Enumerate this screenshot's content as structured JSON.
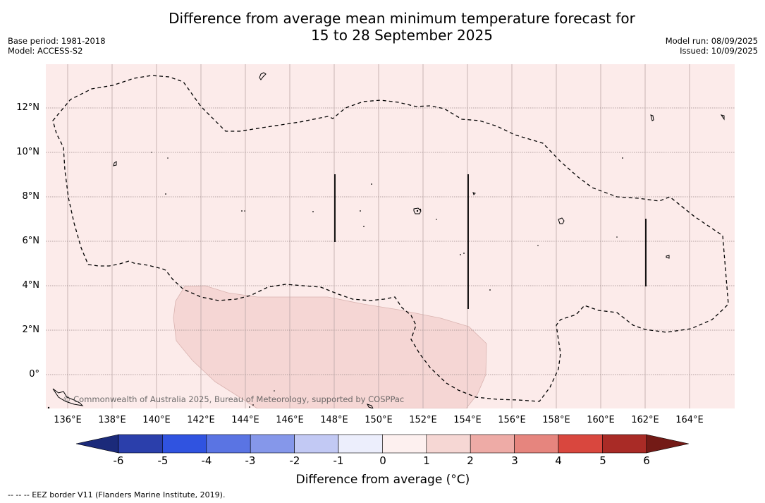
{
  "title": {
    "line1": "Difference from average mean minimum temperature forecast for",
    "line2": "15 to 28 September 2025"
  },
  "meta_left": {
    "base_period": "Base period: 1981-2018",
    "model": "Model: ACCESS-S2"
  },
  "meta_right": {
    "model_run": "Model run: 08/09/2025",
    "issued": "Issued: 10/09/2025"
  },
  "map": {
    "background_color": "#fcebea",
    "anomaly_patch_color": "#f5d6d4",
    "anomaly_patch_value_range": "1 to 2",
    "copyright": "© Commonwealth of Australia 2025, Bureau of Meteorology, supported by COSPPac",
    "longitude_ticks": [
      "136°E",
      "138°E",
      "140°E",
      "142°E",
      "144°E",
      "146°E",
      "148°E",
      "150°E",
      "152°E",
      "154°E",
      "156°E",
      "158°E",
      "160°E",
      "162°E",
      "164°E"
    ],
    "latitude_ticks": [
      "12°N",
      "10°N",
      "8°N",
      "6°N",
      "4°N",
      "2°N",
      "0°"
    ]
  },
  "colorbar": {
    "ticks": [
      "-6",
      "-5",
      "-4",
      "-3",
      "-2",
      "-1",
      "0",
      "1",
      "2",
      "3",
      "4",
      "5",
      "6"
    ],
    "colors": [
      "#1b2a7a",
      "#2b3fab",
      "#3053e0",
      "#5a74e3",
      "#8597ea",
      "#c2c9f4",
      "#eceefc",
      "#fdf0ef",
      "#f6d7d4",
      "#eeaba6",
      "#e6857e",
      "#d9473e",
      "#a92b26",
      "#731a16"
    ],
    "label": "Difference from average (°C)"
  },
  "footnote": "--  --  -- EEZ border V11 (Flanders Marine Institute, 2019)."
}
